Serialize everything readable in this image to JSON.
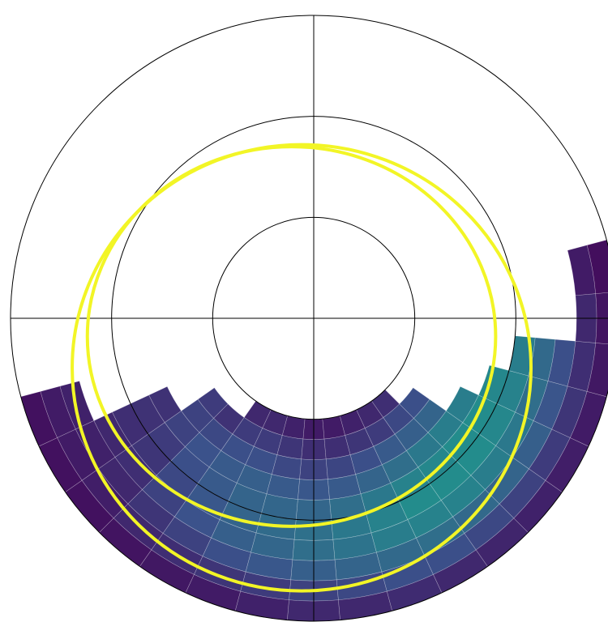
{
  "chart_data": {
    "type": "polar_heatmap",
    "rlim": [
      0,
      30
    ],
    "rticks": [
      10,
      20,
      30
    ],
    "thetaticks": [
      0,
      90,
      180,
      270
    ],
    "r_edges": [
      10,
      12,
      14,
      16,
      18,
      20,
      22,
      24,
      26,
      28,
      30
    ],
    "theta_edges": [
      -165,
      -155,
      -145,
      -135,
      -125,
      -115,
      -105,
      -95,
      -85,
      -75,
      -65,
      -55,
      -45,
      -35,
      -25,
      -15,
      -5,
      5,
      15
    ],
    "colormap": "viridis",
    "vlim": [
      0,
      1
    ],
    "values": [
      [
        null,
        null,
        null,
        null,
        null,
        null,
        null,
        0.1,
        0.08,
        0.05
      ],
      [
        null,
        null,
        null,
        0.15,
        0.15,
        0.14,
        0.12,
        0.1,
        0.08,
        0.05
      ],
      [
        null,
        0.18,
        0.2,
        0.2,
        0.18,
        0.16,
        0.14,
        0.12,
        0.09,
        0.05
      ],
      [
        null,
        0.15,
        0.22,
        0.25,
        0.24,
        0.22,
        0.2,
        0.16,
        0.12,
        0.06
      ],
      [
        0.12,
        0.18,
        0.24,
        0.28,
        0.28,
        0.27,
        0.25,
        0.2,
        0.14,
        0.07
      ],
      [
        0.12,
        0.18,
        0.24,
        0.3,
        0.32,
        0.32,
        0.3,
        0.24,
        0.16,
        0.08
      ],
      [
        0.1,
        0.16,
        0.22,
        0.28,
        0.33,
        0.35,
        0.33,
        0.27,
        0.18,
        0.1
      ],
      [
        0.08,
        0.14,
        0.2,
        0.27,
        0.33,
        0.37,
        0.36,
        0.3,
        0.2,
        0.12
      ],
      [
        0.08,
        0.14,
        0.21,
        0.28,
        0.36,
        0.4,
        0.38,
        0.32,
        0.22,
        0.12
      ],
      [
        0.1,
        0.16,
        0.24,
        0.32,
        0.4,
        0.44,
        0.42,
        0.34,
        0.24,
        0.13
      ],
      [
        0.12,
        0.18,
        0.28,
        0.36,
        0.44,
        0.48,
        0.44,
        0.36,
        0.24,
        0.12
      ],
      [
        0.14,
        0.22,
        0.3,
        0.4,
        0.46,
        0.48,
        0.44,
        0.34,
        0.22,
        0.11
      ],
      [
        null,
        0.24,
        0.32,
        0.42,
        0.48,
        0.48,
        0.42,
        0.32,
        0.2,
        0.1
      ],
      [
        null,
        null,
        null,
        0.42,
        0.48,
        0.46,
        0.4,
        0.3,
        0.18,
        0.09
      ],
      [
        null,
        null,
        null,
        null,
        0.46,
        0.44,
        0.36,
        0.26,
        0.16,
        0.08
      ],
      [
        null,
        null,
        null,
        null,
        null,
        0.42,
        0.34,
        0.24,
        0.14,
        0.07
      ],
      [
        null,
        null,
        null,
        null,
        null,
        null,
        null,
        null,
        0.12,
        0.06
      ],
      [
        null,
        null,
        null,
        null,
        null,
        null,
        null,
        null,
        0.08,
        0.04
      ]
    ],
    "curves": [
      {
        "color": "#f2f526",
        "center": [
          -2.2,
          -1.8
        ],
        "radii": [
          20.2,
          18.8
        ]
      },
      {
        "color": "#f2f526",
        "center": [
          -1.2,
          -4.9
        ],
        "radii": [
          22.7,
          22.1
        ]
      }
    ]
  }
}
